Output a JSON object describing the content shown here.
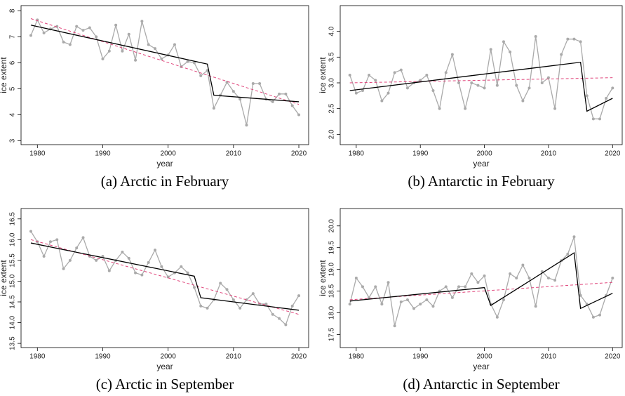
{
  "chart_data": [
    {
      "type": "line",
      "caption": "(a) Arctic in February",
      "xlabel": "year",
      "ylabel": "ice extent",
      "x": [
        1979,
        1980,
        1981,
        1982,
        1983,
        1984,
        1985,
        1986,
        1987,
        1988,
        1989,
        1990,
        1991,
        1992,
        1993,
        1994,
        1995,
        1996,
        1997,
        1998,
        1999,
        2000,
        2001,
        2002,
        2003,
        2004,
        2005,
        2006,
        2007,
        2008,
        2009,
        2010,
        2011,
        2012,
        2013,
        2014,
        2015,
        2016,
        2017,
        2018,
        2019,
        2020
      ],
      "xlim": [
        1977.5,
        2021.5
      ],
      "xticks": [
        1980,
        1990,
        2000,
        2010,
        2020
      ],
      "ylim": [
        2.85,
        8.2
      ],
      "yticks": [
        3,
        4,
        5,
        6,
        7,
        8
      ],
      "series": [
        {
          "color": "#aaaaaa",
          "markers": true,
          "values": [
            7.05,
            7.65,
            7.15,
            7.3,
            7.4,
            6.8,
            6.7,
            7.4,
            7.25,
            7.35,
            7.0,
            6.15,
            6.45,
            7.45,
            6.45,
            7.1,
            6.1,
            7.6,
            6.7,
            6.55,
            6.15,
            6.3,
            6.7,
            5.85,
            6.05,
            6.0,
            5.5,
            5.7,
            4.25,
            4.75,
            5.25,
            4.9,
            4.6,
            3.6,
            5.2,
            5.2,
            4.6,
            4.5,
            4.8,
            4.8,
            4.35,
            4.0
          ]
        },
        {
          "color": "#e0457b",
          "dashed": true,
          "x": [
            1979,
            2020
          ],
          "values": [
            7.7,
            4.4
          ]
        },
        {
          "color": "#000000",
          "x": [
            1979,
            2006,
            2007,
            2020
          ],
          "values": [
            7.45,
            5.95,
            4.75,
            4.5
          ]
        }
      ]
    },
    {
      "type": "line",
      "caption": "(b) Antarctic in February",
      "xlabel": "year",
      "ylabel": "ice extent",
      "x": [
        1979,
        1980,
        1981,
        1982,
        1983,
        1984,
        1985,
        1986,
        1987,
        1988,
        1989,
        1990,
        1991,
        1992,
        1993,
        1994,
        1995,
        1996,
        1997,
        1998,
        1999,
        2000,
        2001,
        2002,
        2003,
        2004,
        2005,
        2006,
        2007,
        2008,
        2009,
        2010,
        2011,
        2012,
        2013,
        2014,
        2015,
        2016,
        2017,
        2018,
        2019,
        2020
      ],
      "xlim": [
        1977.5,
        2021.5
      ],
      "xticks": [
        1980,
        1990,
        2000,
        2010,
        2020
      ],
      "ylim": [
        1.8,
        4.5
      ],
      "yticks": [
        {
          "value": 2,
          "label": "2.0"
        },
        2.5,
        {
          "value": 3,
          "label": "3.0"
        },
        3.5,
        {
          "value": 4,
          "label": "4.0"
        }
      ],
      "series": [
        {
          "color": "#aaaaaa",
          "markers": true,
          "values": [
            3.15,
            2.8,
            2.85,
            3.15,
            3.05,
            2.65,
            2.8,
            3.2,
            3.25,
            2.9,
            3.0,
            3.05,
            3.15,
            2.85,
            2.5,
            3.2,
            3.55,
            3.0,
            2.5,
            3.0,
            2.95,
            2.9,
            3.65,
            2.95,
            3.8,
            3.6,
            2.95,
            2.65,
            2.9,
            3.9,
            3.0,
            3.1,
            2.5,
            3.55,
            3.85,
            3.85,
            3.8,
            2.75,
            2.3,
            2.3,
            2.7,
            2.9
          ]
        },
        {
          "color": "#e0457b",
          "dashed": true,
          "x": [
            1979,
            2020
          ],
          "values": [
            3.0,
            3.1
          ]
        },
        {
          "color": "#000000",
          "x": [
            1979,
            2015,
            2016,
            2020
          ],
          "values": [
            2.85,
            3.4,
            2.45,
            2.7
          ]
        }
      ]
    },
    {
      "type": "line",
      "caption": "(c) Arctic in September",
      "xlabel": "year",
      "ylabel": "ice extent",
      "x": [
        1979,
        1980,
        1981,
        1982,
        1983,
        1984,
        1985,
        1986,
        1987,
        1988,
        1989,
        1990,
        1991,
        1992,
        1993,
        1994,
        1995,
        1996,
        1997,
        1998,
        1999,
        2000,
        2001,
        2002,
        2003,
        2004,
        2005,
        2006,
        2007,
        2008,
        2009,
        2010,
        2011,
        2012,
        2013,
        2014,
        2015,
        2016,
        2017,
        2018,
        2019,
        2020
      ],
      "xlim": [
        1977.5,
        2021.5
      ],
      "xticks": [
        1980,
        1990,
        2000,
        2010,
        2020
      ],
      "ylim": [
        13.4,
        16.75
      ],
      "yticks": [
        13.5,
        {
          "value": 14,
          "label": "14.0"
        },
        14.5,
        {
          "value": 15,
          "label": "15.0"
        },
        15.5,
        {
          "value": 16,
          "label": "16.0"
        },
        16.5
      ],
      "series": [
        {
          "color": "#aaaaaa",
          "markers": true,
          "values": [
            16.2,
            15.95,
            15.6,
            15.95,
            16.0,
            15.3,
            15.5,
            15.8,
            16.05,
            15.6,
            15.5,
            15.6,
            15.25,
            15.5,
            15.7,
            15.55,
            15.2,
            15.15,
            15.45,
            15.75,
            15.35,
            15.1,
            15.2,
            15.35,
            15.2,
            14.85,
            14.4,
            14.35,
            14.55,
            14.95,
            14.8,
            14.55,
            14.35,
            14.55,
            14.7,
            14.45,
            14.45,
            14.2,
            14.1,
            13.95,
            14.4,
            14.65
          ]
        },
        {
          "color": "#e0457b",
          "dashed": true,
          "x": [
            1979,
            2020
          ],
          "values": [
            16.0,
            14.2
          ]
        },
        {
          "color": "#000000",
          "x": [
            1979,
            2004,
            2005,
            2020
          ],
          "values": [
            15.92,
            15.12,
            14.6,
            14.3
          ]
        }
      ]
    },
    {
      "type": "line",
      "caption": "(d) Antarctic in September",
      "xlabel": "year",
      "ylabel": "ice extent",
      "x": [
        1979,
        1980,
        1981,
        1982,
        1983,
        1984,
        1985,
        1986,
        1987,
        1988,
        1989,
        1990,
        1991,
        1992,
        1993,
        1994,
        1995,
        1996,
        1997,
        1998,
        1999,
        2000,
        2001,
        2002,
        2003,
        2004,
        2005,
        2006,
        2007,
        2008,
        2009,
        2010,
        2011,
        2012,
        2013,
        2014,
        2015,
        2016,
        2017,
        2018,
        2019,
        2020
      ],
      "xlim": [
        1977.5,
        2021.5
      ],
      "xticks": [
        1980,
        1990,
        2000,
        2010,
        2020
      ],
      "ylim": [
        17.2,
        20.4
      ],
      "yticks": [
        17.5,
        {
          "value": 18,
          "label": "18.0"
        },
        18.5,
        {
          "value": 19,
          "label": "19.0"
        },
        19.5,
        {
          "value": 20,
          "label": "20.0"
        }
      ],
      "series": [
        {
          "color": "#aaaaaa",
          "markers": true,
          "values": [
            18.2,
            18.8,
            18.6,
            18.35,
            18.6,
            18.2,
            18.7,
            17.7,
            18.25,
            18.3,
            18.1,
            18.2,
            18.3,
            18.15,
            18.5,
            18.6,
            18.35,
            18.6,
            18.6,
            18.9,
            18.7,
            18.85,
            18.2,
            17.9,
            18.3,
            18.9,
            18.8,
            19.1,
            18.8,
            18.15,
            18.95,
            18.8,
            18.75,
            19.2,
            19.35,
            19.75,
            18.4,
            18.2,
            17.9,
            17.95,
            18.4,
            18.8
          ]
        },
        {
          "color": "#e0457b",
          "dashed": true,
          "x": [
            1979,
            2020
          ],
          "values": [
            18.3,
            18.7
          ]
        },
        {
          "color": "#000000",
          "x": [
            1979,
            2000,
            2001,
            2014,
            2015,
            2020
          ],
          "values": [
            18.27,
            18.58,
            18.17,
            19.38,
            18.1,
            18.45
          ]
        }
      ]
    }
  ]
}
